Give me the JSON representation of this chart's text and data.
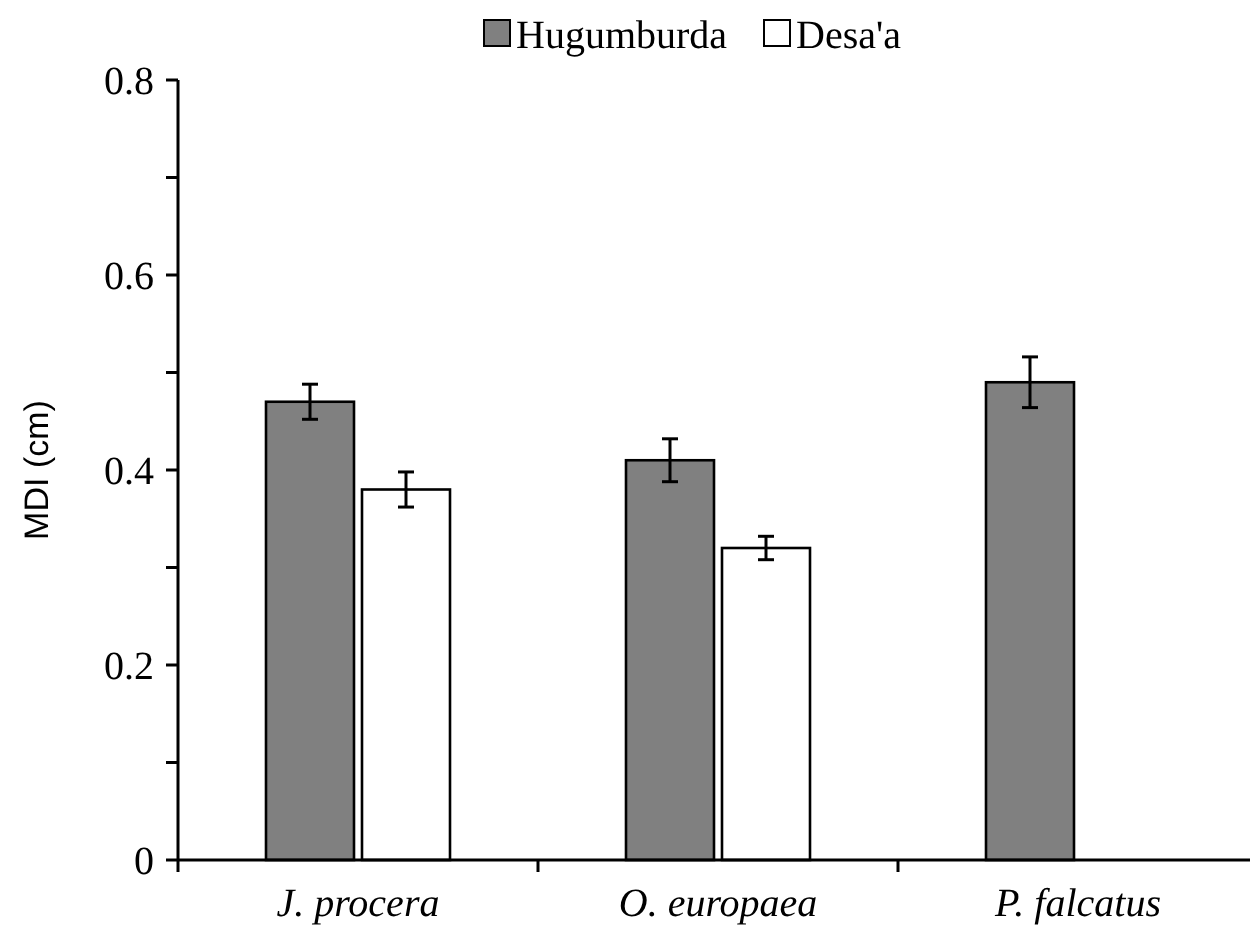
{
  "chart_data": {
    "type": "bar",
    "ylabel": "MDI (cm)",
    "categories": [
      "J. procera",
      "O. europaea",
      "P. falcatus"
    ],
    "series": [
      {
        "name": "Hugumburda",
        "color": "#808080",
        "values": [
          0.47,
          0.41,
          0.49
        ],
        "errors": [
          0.018,
          0.022,
          0.026
        ]
      },
      {
        "name": "Desa'a",
        "color": "#ffffff",
        "values": [
          0.38,
          0.32,
          null
        ],
        "errors": [
          0.018,
          0.012,
          null
        ]
      }
    ],
    "ylim": [
      0,
      0.8
    ],
    "yticks": [
      0,
      {
        "value": 0.1,
        "label": null
      },
      0.2,
      {
        "value": 0.3,
        "label": null
      },
      0.4,
      {
        "value": 0.5,
        "label": null
      },
      0.6,
      {
        "value": 0.7,
        "label": null
      },
      0.8
    ],
    "grid": false,
    "legend": "top"
  }
}
